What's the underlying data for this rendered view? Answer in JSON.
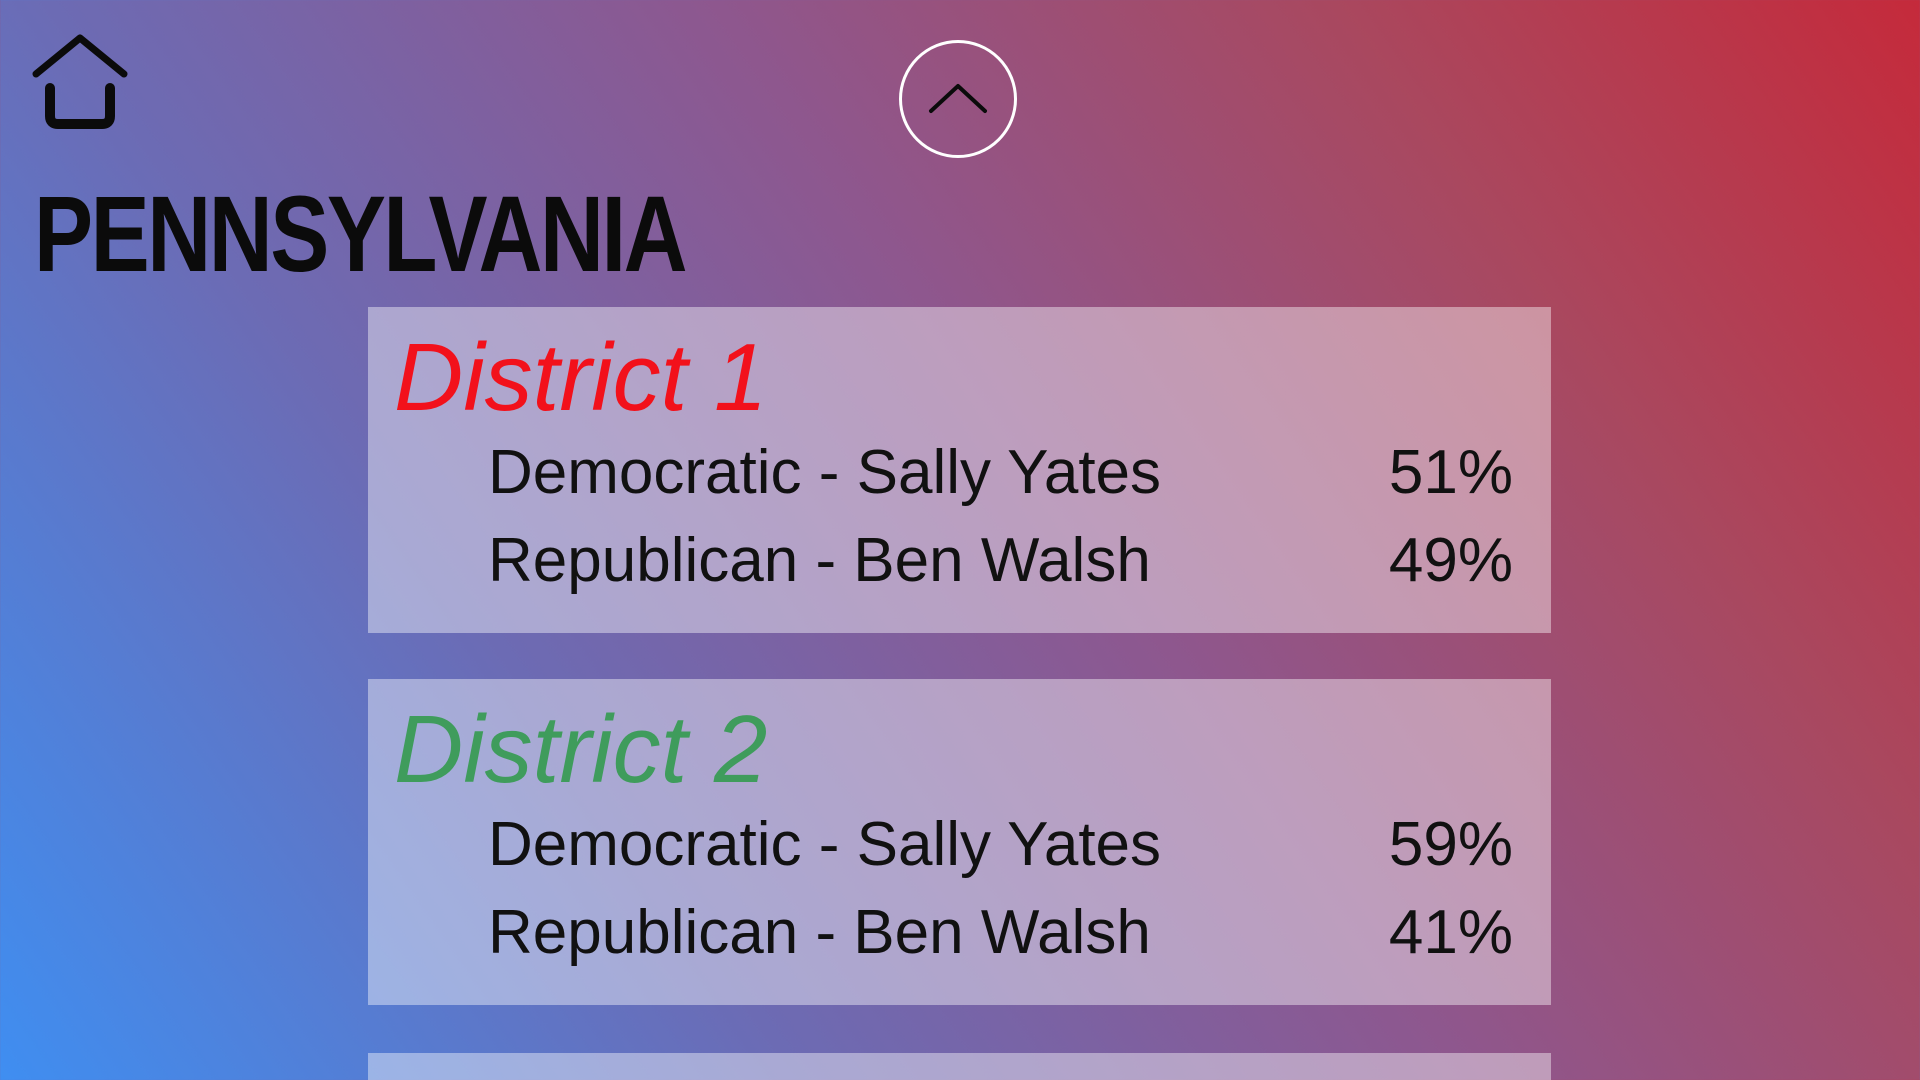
{
  "header": {
    "home_icon": "home-icon",
    "scroll_up_icon": "chevron-up-icon",
    "scroll_up_border_color": "#ffffff",
    "state_name": "PENNSYLVANIA"
  },
  "districts": [
    {
      "title": "District 1",
      "title_color": "#f2111b",
      "results": [
        {
          "label": "Democratic - Sally Yates",
          "percent": "51%"
        },
        {
          "label": "Republican - Ben Walsh",
          "percent": "49%"
        }
      ]
    },
    {
      "title": "District 2",
      "title_color": "#3f9c5c",
      "results": [
        {
          "label": "Democratic - Sally Yates",
          "percent": "59%"
        },
        {
          "label": "Republican - Ben Walsh",
          "percent": "41%"
        }
      ]
    }
  ],
  "colors": {
    "gradient_blue": "#3f8ef1",
    "gradient_red": "#c52a3b",
    "title_text": "#0b0b0b"
  }
}
